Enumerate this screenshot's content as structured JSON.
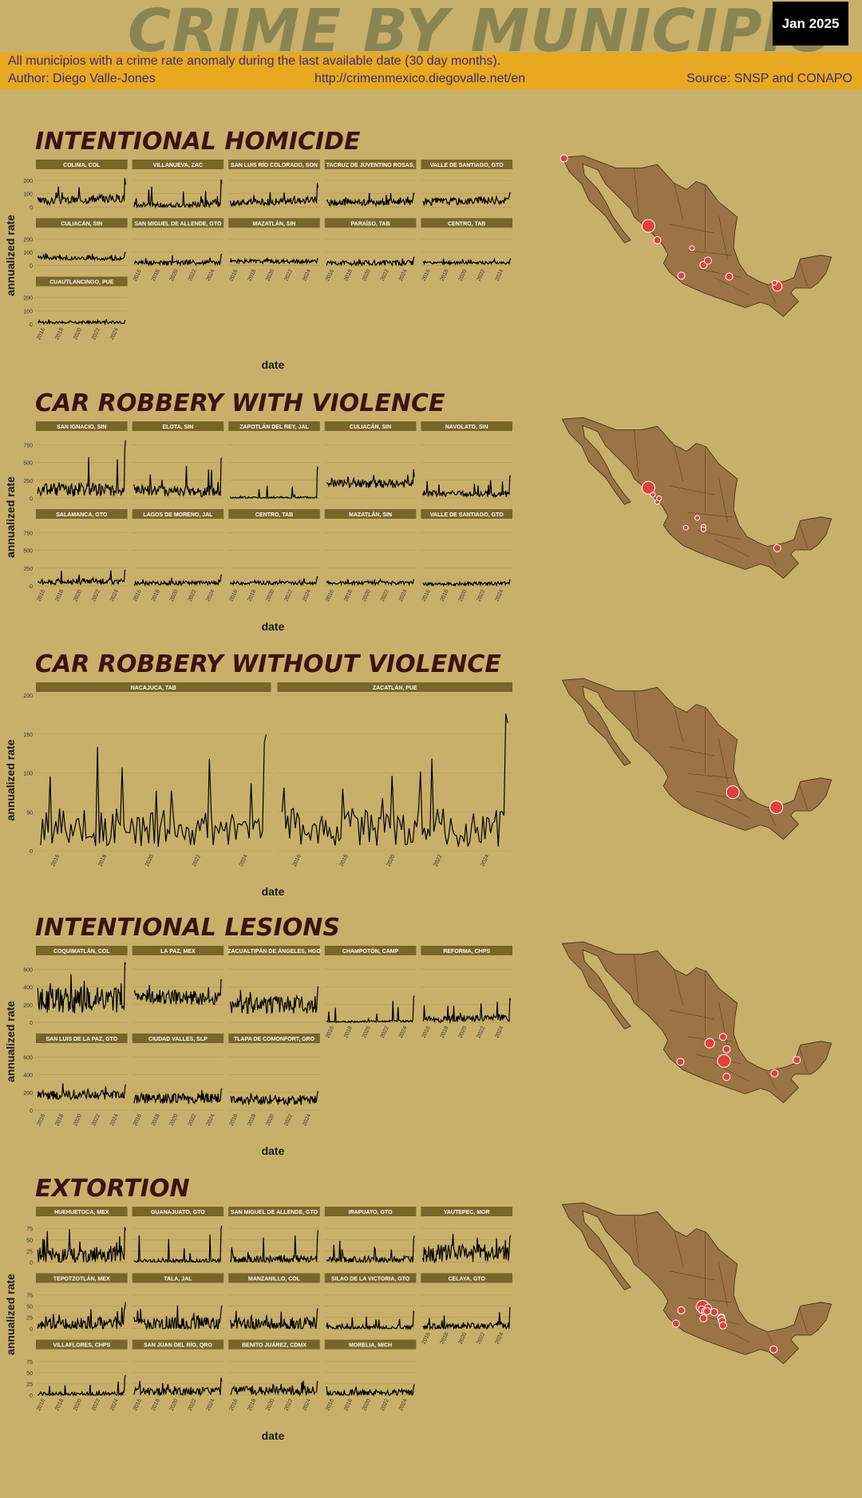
{
  "header": {
    "title": "CRIME BY MUNICIPIO",
    "date_badge": "Jan 2025",
    "subtitle": "All municipios with a crime rate anomaly during the last available date (30 day months).",
    "author": "Author: Diego Valle-Jones",
    "url": "http://crimenmexico.diegovalle.net/en",
    "source": "Source: SNSP and CONAPO"
  },
  "colors": {
    "background": "#c8b06a",
    "banner": "#e8a820",
    "strip": "#7a6428",
    "map_land": "#9b7445",
    "marker": "#e0413a",
    "title_text": "#3a1414"
  },
  "x_tick_labels": [
    "2016",
    "2018",
    "2020",
    "2022",
    "2024"
  ],
  "chart_data": [
    {
      "type": "line",
      "title": "INTENTIONAL HOMICIDE",
      "xlabel": "date",
      "ylabel": "annualized rate",
      "ylim": [
        0,
        260
      ],
      "yticks": [
        0,
        100,
        200
      ],
      "x_range": [
        2015,
        2025
      ],
      "panels": [
        "COLIMA, COL",
        "VILLANUEVA, ZAC",
        "SAN LUIS RÍO COLORADO, SON",
        "TACRUZ DE JUVENTINO ROSAS,",
        "VALLE DE SANTIAGO, GTO",
        "CULIACÁN, SIN",
        "SAN MIGUEL DE ALLENDE, GTO",
        "MAZATLÁN, SIN",
        "PARAÍSO, TAB",
        "CENTRO, TAB",
        "CUAUTLANCINGO, PUE"
      ],
      "series_profile": [
        {
          "base": 55,
          "noise": 30,
          "spike": 240,
          "trend": 0.5
        },
        {
          "base": 15,
          "noise": 25,
          "spike": 230,
          "trend": 0.3
        },
        {
          "base": 40,
          "noise": 25,
          "spike": 200,
          "trend": 0.7
        },
        {
          "base": 35,
          "noise": 25,
          "spike": 120,
          "trend": 0.2
        },
        {
          "base": 45,
          "noise": 28,
          "spike": 110,
          "trend": 0.3
        },
        {
          "base": 55,
          "noise": 15,
          "spike": 115,
          "trend": -0.1
        },
        {
          "base": 20,
          "noise": 18,
          "spike": 100,
          "trend": 0.2
        },
        {
          "base": 30,
          "noise": 15,
          "spike": 60,
          "trend": -0.2
        },
        {
          "base": 20,
          "noise": 20,
          "spike": 70,
          "trend": 0.1
        },
        {
          "base": 20,
          "noise": 10,
          "spike": 55,
          "trend": 0.1
        },
        {
          "base": 12,
          "noise": 10,
          "spike": 35,
          "trend": 0.2
        }
      ],
      "map_markers": [
        {
          "lon": -116.9,
          "lat": 32.4,
          "size": "small"
        },
        {
          "lon": -107.4,
          "lat": 24.8,
          "size": "large"
        },
        {
          "lon": -106.4,
          "lat": 23.2,
          "size": "small"
        },
        {
          "lon": -102.5,
          "lat": 22.3,
          "size": "tiny"
        },
        {
          "lon": -101.2,
          "lat": 20.4,
          "size": "small"
        },
        {
          "lon": -100.7,
          "lat": 20.9,
          "size": "small"
        },
        {
          "lon": -103.7,
          "lat": 19.2,
          "size": "small"
        },
        {
          "lon": -98.3,
          "lat": 19.1,
          "size": "small"
        },
        {
          "lon": -92.9,
          "lat": 18.0,
          "size": "medium"
        },
        {
          "lon": -93.2,
          "lat": 18.4,
          "size": "tiny"
        }
      ]
    },
    {
      "type": "line",
      "title": "CAR ROBBERY WITH VIOLENCE",
      "xlabel": "date",
      "ylabel": "annualized rate",
      "ylim": [
        0,
        900
      ],
      "yticks": [
        0,
        250,
        500,
        750
      ],
      "x_range": [
        2015,
        2025
      ],
      "panels": [
        "SAN IGNACIO, SIN",
        "ELOTA, SIN",
        "ZAPOTLÁN DEL REY, JAL",
        "CULIACÁN, SIN",
        "NAVOLATO, SIN",
        "SALAMANCA, GTO",
        "LAGOS DE MORENO, JAL",
        "CENTRO, TAB",
        "MAZATLÁN, SIN",
        "VALLE DE SANTIAGO, GTO"
      ],
      "series_profile": [
        {
          "base": 120,
          "noise": 100,
          "spike": 880,
          "trend": -0.2
        },
        {
          "base": 100,
          "noise": 80,
          "spike": 610,
          "trend": -0.3
        },
        {
          "base": 5,
          "noise": 20,
          "spike": 550,
          "trend": 0.5
        },
        {
          "base": 200,
          "noise": 60,
          "spike": 420,
          "trend": 0
        },
        {
          "base": 60,
          "noise": 40,
          "spike": 350,
          "trend": -0.2
        },
        {
          "base": 60,
          "noise": 40,
          "spike": 230,
          "trend": 0.2
        },
        {
          "base": 40,
          "noise": 30,
          "spike": 170,
          "trend": 0.3
        },
        {
          "base": 40,
          "noise": 25,
          "spike": 130,
          "trend": -0.1
        },
        {
          "base": 40,
          "noise": 25,
          "spike": 90,
          "trend": 0
        },
        {
          "base": 30,
          "noise": 25,
          "spike": 90,
          "trend": 0.2
        }
      ],
      "map_markers": [
        {
          "lon": -107.4,
          "lat": 24.8,
          "size": "large"
        },
        {
          "lon": -106.9,
          "lat": 24.0,
          "size": "tiny"
        },
        {
          "lon": -106.4,
          "lat": 23.2,
          "size": "tiny"
        },
        {
          "lon": -106.2,
          "lat": 23.6,
          "size": "tiny"
        },
        {
          "lon": -101.9,
          "lat": 21.4,
          "size": "tiny"
        },
        {
          "lon": -101.2,
          "lat": 20.4,
          "size": "tiny"
        },
        {
          "lon": -101.2,
          "lat": 20.1,
          "size": "tiny"
        },
        {
          "lon": -103.2,
          "lat": 20.3,
          "size": "tiny"
        },
        {
          "lon": -92.9,
          "lat": 18.0,
          "size": "small"
        }
      ]
    },
    {
      "type": "line",
      "title": "CAR ROBBERY WITHOUT VIOLENCE",
      "xlabel": "date",
      "ylabel": "annualized rate",
      "ylim": [
        0,
        200
      ],
      "yticks": [
        0,
        50,
        100,
        150,
        200
      ],
      "x_range": [
        2015,
        2025
      ],
      "panels": [
        "NACAJUCA, TAB",
        "ZACATLÁN, PUE"
      ],
      "series_profile": [
        {
          "base": 30,
          "noise": 25,
          "spike": 195,
          "trend": 0
        },
        {
          "base": 30,
          "noise": 25,
          "spike": 180,
          "trend": 0
        }
      ],
      "map_markers": [
        {
          "lon": -97.9,
          "lat": 19.9,
          "size": "large"
        },
        {
          "lon": -93.0,
          "lat": 18.2,
          "size": "large"
        }
      ]
    },
    {
      "type": "line",
      "title": "INTENTIONAL LESIONS",
      "xlabel": "date",
      "ylabel": "annualized rate",
      "ylim": [
        0,
        720
      ],
      "yticks": [
        0,
        200,
        400,
        600
      ],
      "x_range": [
        2015,
        2025
      ],
      "panels": [
        "COQUIMATLÁN, COL",
        "LA PAZ, MEX",
        "ZACUALTIPÁN DE ÁNGELES, HGO",
        "CHAMPOTÓN, CAMP",
        "REFORMA, CHPS",
        "SAN LUIS DE LA PAZ, GTO",
        "CIUDAD VALLES, SLP",
        "TLAPA DE COMONFORT, GRO"
      ],
      "series_profile": [
        {
          "base": 250,
          "noise": 150,
          "spike": 720,
          "trend": 0
        },
        {
          "base": 280,
          "noise": 80,
          "spike": 480,
          "trend": -0.1
        },
        {
          "base": 200,
          "noise": 100,
          "spike": 430,
          "trend": 0
        },
        {
          "base": 10,
          "noise": 10,
          "spike": 380,
          "trend": 0.9
        },
        {
          "base": 40,
          "noise": 40,
          "spike": 290,
          "trend": 0.6
        },
        {
          "base": 170,
          "noise": 50,
          "spike": 300,
          "trend": 0
        },
        {
          "base": 130,
          "noise": 60,
          "spike": 260,
          "trend": 0
        },
        {
          "base": 110,
          "noise": 50,
          "spike": 230,
          "trend": 0
        }
      ],
      "map_markers": [
        {
          "lon": -103.8,
          "lat": 19.2,
          "size": "small"
        },
        {
          "lon": -98.9,
          "lat": 19.3,
          "size": "large"
        },
        {
          "lon": -98.6,
          "lat": 20.6,
          "size": "small"
        },
        {
          "lon": -90.7,
          "lat": 19.4,
          "size": "small"
        },
        {
          "lon": -93.2,
          "lat": 17.9,
          "size": "small"
        },
        {
          "lon": -100.5,
          "lat": 21.3,
          "size": "medium"
        },
        {
          "lon": -99.0,
          "lat": 22.0,
          "size": "small"
        },
        {
          "lon": -98.6,
          "lat": 17.5,
          "size": "small"
        }
      ]
    },
    {
      "type": "line",
      "title": "EXTORTION",
      "xlabel": "date",
      "ylabel": "annualized rate",
      "ylim": [
        0,
        95
      ],
      "yticks": [
        0,
        25,
        50,
        75
      ],
      "x_range": [
        2015,
        2025
      ],
      "panels": [
        "HUEHUETOCA, MEX",
        "GUANAJUATO, GTO",
        "SAN MIGUEL DE ALLENDE, GTO",
        "IRAPUATO, GTO",
        "YAUTEPEC, MOR",
        "TEPOTZOTLÁN, MEX",
        "TALA, JAL",
        "MANZANILLO, COL",
        "SILAO DE LA VICTORIA, GTO",
        "CELAYA, GTO",
        "VILLAFLORES, CHPS",
        "SAN JUAN DEL RÍO, QRO",
        "BENITO JUÁREZ, CDMX",
        "MORELIA, MICH"
      ],
      "series_profile": [
        {
          "base": 15,
          "noise": 20,
          "spike": 92,
          "trend": 0.3
        },
        {
          "base": 2,
          "noise": 5,
          "spike": 85,
          "trend": 0.9
        },
        {
          "base": 5,
          "noise": 10,
          "spike": 75,
          "trend": 0.7
        },
        {
          "base": 5,
          "noise": 8,
          "spike": 70,
          "trend": 0.6
        },
        {
          "base": 20,
          "noise": 20,
          "spike": 65,
          "trend": 0.2
        },
        {
          "base": 10,
          "noise": 15,
          "spike": 60,
          "trend": 0.3
        },
        {
          "base": 10,
          "noise": 15,
          "spike": 55,
          "trend": 0.2
        },
        {
          "base": 10,
          "noise": 15,
          "spike": 45,
          "trend": 0.1
        },
        {
          "base": 2,
          "noise": 6,
          "spike": 40,
          "trend": 0.8
        },
        {
          "base": 5,
          "noise": 8,
          "spike": 48,
          "trend": 0.7
        },
        {
          "base": 2,
          "noise": 5,
          "spike": 50,
          "trend": 0
        },
        {
          "base": 8,
          "noise": 10,
          "spike": 40,
          "trend": 0.4
        },
        {
          "base": 10,
          "noise": 10,
          "spike": 35,
          "trend": 0
        },
        {
          "base": 5,
          "noise": 8,
          "spike": 25,
          "trend": 0.4
        }
      ],
      "map_markers": [
        {
          "lon": -104.3,
          "lat": 19.1,
          "size": "small"
        },
        {
          "lon": -103.7,
          "lat": 20.6,
          "size": "small"
        },
        {
          "lon": -101.3,
          "lat": 21.0,
          "size": "large"
        },
        {
          "lon": -100.7,
          "lat": 20.9,
          "size": "small"
        },
        {
          "lon": -101.4,
          "lat": 20.7,
          "size": "small"
        },
        {
          "lon": -101.0,
          "lat": 20.5,
          "size": "small"
        },
        {
          "lon": -100.8,
          "lat": 20.5,
          "size": "small"
        },
        {
          "lon": -99.2,
          "lat": 19.8,
          "size": "small"
        },
        {
          "lon": -99.2,
          "lat": 19.7,
          "size": "small"
        },
        {
          "lon": -99.1,
          "lat": 19.4,
          "size": "small"
        },
        {
          "lon": -99.0,
          "lat": 18.9,
          "size": "small"
        },
        {
          "lon": -100.0,
          "lat": 20.4,
          "size": "small"
        },
        {
          "lon": -101.2,
          "lat": 19.7,
          "size": "small"
        },
        {
          "lon": -93.3,
          "lat": 16.2,
          "size": "small"
        }
      ]
    }
  ]
}
